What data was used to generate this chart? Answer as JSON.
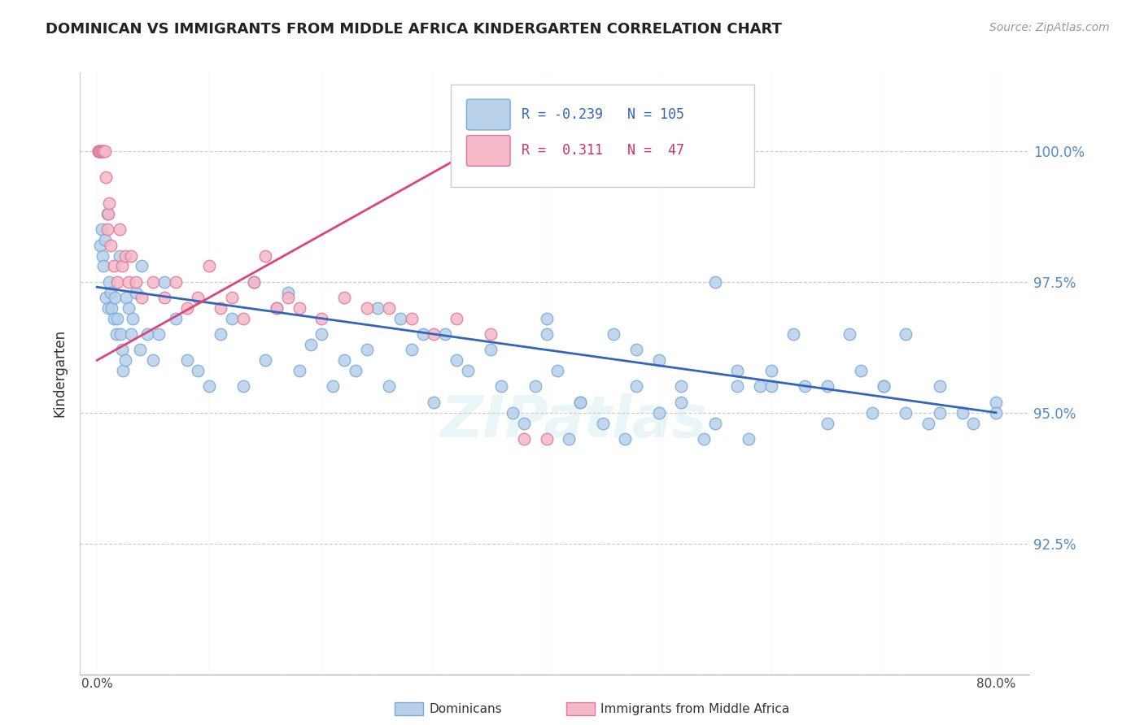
{
  "title": "DOMINICAN VS IMMIGRANTS FROM MIDDLE AFRICA KINDERGARTEN CORRELATION CHART",
  "source": "Source: ZipAtlas.com",
  "ylabel": "Kindergarten",
  "yticks": [
    90.0,
    92.5,
    95.0,
    97.5,
    100.0
  ],
  "ytick_labels": [
    "",
    "92.5%",
    "95.0%",
    "97.5%",
    "100.0%"
  ],
  "xticks": [
    0.0,
    10.0,
    20.0,
    30.0,
    40.0,
    50.0,
    60.0,
    70.0,
    80.0
  ],
  "xlim": [
    -1.5,
    83.0
  ],
  "ylim": [
    90.0,
    101.5
  ],
  "blue_R": -0.239,
  "blue_N": 105,
  "pink_R": 0.311,
  "pink_N": 47,
  "blue_color": "#b8d0e8",
  "blue_edge": "#7aaadd",
  "pink_color": "#f4b8c8",
  "pink_edge": "#e07898",
  "blue_line_color": "#3366bb",
  "pink_line_color": "#dd4477",
  "watermark": "ZIPatlas",
  "legend_label_blue": "Dominicans",
  "legend_label_pink": "Immigrants from Middle Africa",
  "blue_line_x0": 0.0,
  "blue_line_y0": 97.4,
  "blue_line_x1": 80.0,
  "blue_line_y1": 95.0,
  "pink_line_x0": 0.0,
  "pink_line_y0": 96.0,
  "pink_line_x1": 35.0,
  "pink_line_y1": 100.2,
  "blue_scatter_x": [
    0.3,
    0.4,
    0.5,
    0.6,
    0.7,
    0.8,
    0.9,
    1.0,
    1.1,
    1.2,
    1.3,
    1.5,
    1.6,
    1.7,
    1.8,
    2.0,
    2.1,
    2.2,
    2.3,
    2.5,
    2.6,
    2.8,
    3.0,
    3.2,
    3.5,
    3.8,
    4.0,
    4.5,
    5.0,
    5.5,
    6.0,
    7.0,
    8.0,
    9.0,
    10.0,
    11.0,
    12.0,
    13.0,
    14.0,
    15.0,
    16.0,
    17.0,
    18.0,
    19.0,
    20.0,
    21.0,
    22.0,
    23.0,
    24.0,
    25.0,
    26.0,
    27.0,
    28.0,
    29.0,
    30.0,
    31.0,
    32.0,
    33.0,
    35.0,
    36.0,
    37.0,
    38.0,
    39.0,
    40.0,
    41.0,
    42.0,
    43.0,
    45.0,
    46.0,
    47.0,
    48.0,
    50.0,
    52.0,
    54.0,
    55.0,
    57.0,
    58.0,
    59.0,
    60.0,
    62.0,
    63.0,
    65.0,
    67.0,
    69.0,
    70.0,
    72.0,
    74.0,
    75.0,
    77.0,
    78.0,
    80.0,
    40.0,
    43.0,
    48.0,
    50.0,
    52.0,
    55.0,
    57.0,
    60.0,
    65.0,
    68.0,
    70.0,
    72.0,
    75.0,
    80.0
  ],
  "blue_scatter_y": [
    98.2,
    98.5,
    98.0,
    97.8,
    98.3,
    97.2,
    98.8,
    97.0,
    97.5,
    97.3,
    97.0,
    96.8,
    97.2,
    96.5,
    96.8,
    98.0,
    96.5,
    96.2,
    95.8,
    96.0,
    97.2,
    97.0,
    96.5,
    96.8,
    97.3,
    96.2,
    97.8,
    96.5,
    96.0,
    96.5,
    97.5,
    96.8,
    96.0,
    95.8,
    95.5,
    96.5,
    96.8,
    95.5,
    97.5,
    96.0,
    97.0,
    97.3,
    95.8,
    96.3,
    96.5,
    95.5,
    96.0,
    95.8,
    96.2,
    97.0,
    95.5,
    96.8,
    96.2,
    96.5,
    95.2,
    96.5,
    96.0,
    95.8,
    96.2,
    95.5,
    95.0,
    94.8,
    95.5,
    96.5,
    95.8,
    94.5,
    95.2,
    94.8,
    96.5,
    94.5,
    95.5,
    95.0,
    95.5,
    94.5,
    97.5,
    95.5,
    94.5,
    95.5,
    95.5,
    96.5,
    95.5,
    95.5,
    96.5,
    95.0,
    95.5,
    96.5,
    94.8,
    95.0,
    95.0,
    94.8,
    95.2,
    96.8,
    95.2,
    96.2,
    96.0,
    95.2,
    94.8,
    95.8,
    95.8,
    94.8,
    95.8,
    95.5,
    95.0,
    95.5,
    95.0
  ],
  "pink_scatter_x": [
    0.1,
    0.15,
    0.2,
    0.25,
    0.3,
    0.4,
    0.5,
    0.6,
    0.7,
    0.8,
    0.9,
    1.0,
    1.1,
    1.2,
    1.5,
    1.8,
    2.0,
    2.2,
    2.5,
    2.8,
    3.0,
    3.5,
    4.0,
    5.0,
    6.0,
    7.0,
    8.0,
    9.0,
    10.0,
    11.0,
    12.0,
    13.0,
    14.0,
    15.0,
    16.0,
    17.0,
    18.0,
    20.0,
    22.0,
    24.0,
    26.0,
    28.0,
    30.0,
    32.0,
    35.0,
    38.0,
    40.0
  ],
  "pink_scatter_y": [
    100.0,
    100.0,
    100.0,
    100.0,
    100.0,
    100.0,
    100.0,
    100.0,
    100.0,
    99.5,
    98.5,
    98.8,
    99.0,
    98.2,
    97.8,
    97.5,
    98.5,
    97.8,
    98.0,
    97.5,
    98.0,
    97.5,
    97.2,
    97.5,
    97.2,
    97.5,
    97.0,
    97.2,
    97.8,
    97.0,
    97.2,
    96.8,
    97.5,
    98.0,
    97.0,
    97.2,
    97.0,
    96.8,
    97.2,
    97.0,
    97.0,
    96.8,
    96.5,
    96.8,
    96.5,
    94.5,
    94.5
  ]
}
